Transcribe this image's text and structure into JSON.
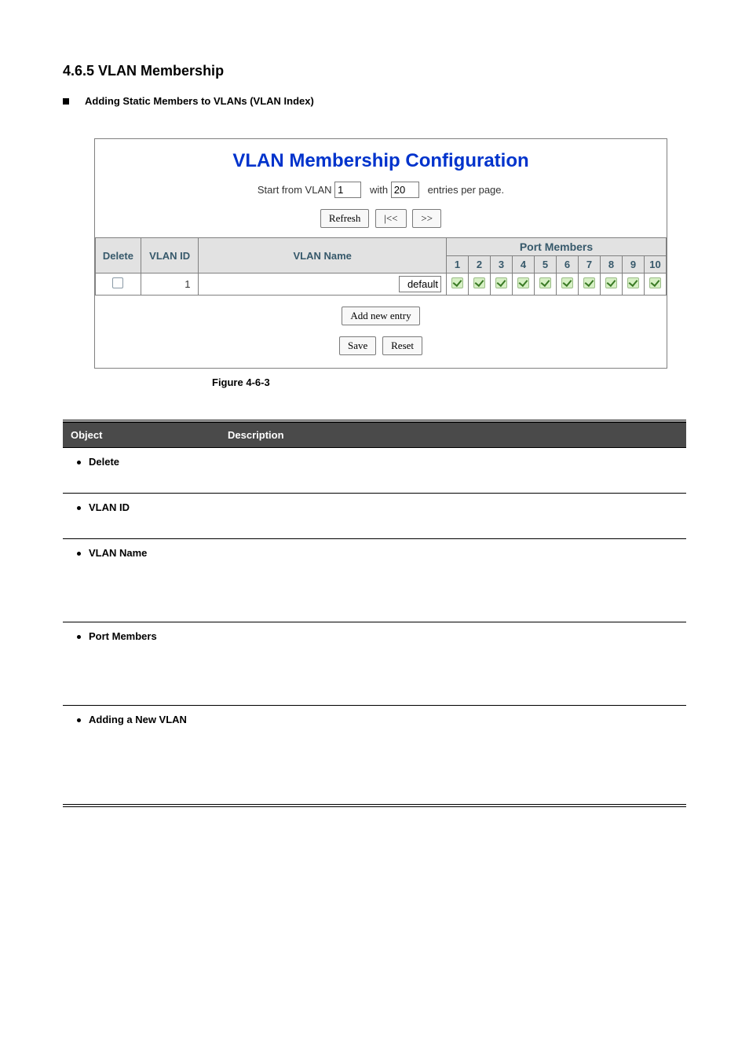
{
  "heading": "4.6.5 VLAN Membership",
  "sub_bullet": "Adding Static Members to VLANs (VLAN Index)",
  "panel": {
    "title": "VLAN Membership Configuration",
    "start_label_pre": "Start from VLAN",
    "start_value": "1",
    "with_label": "with",
    "with_value": "20",
    "entries_label": "entries per page.",
    "refresh_btn": "Refresh",
    "first_btn": "|<<",
    "next_btn": ">>",
    "headers": {
      "delete": "Delete",
      "vlan_id": "VLAN ID",
      "vlan_name": "VLAN Name",
      "port_members": "Port Members"
    },
    "port_numbers": [
      "1",
      "2",
      "3",
      "4",
      "5",
      "6",
      "7",
      "8",
      "9",
      "10"
    ],
    "row": {
      "vlan_id": "1",
      "vlan_name": "default",
      "ports_checked": [
        true,
        true,
        true,
        true,
        true,
        true,
        true,
        true,
        true,
        true
      ]
    },
    "add_btn": "Add new entry",
    "save_btn": "Save",
    "reset_btn": "Reset"
  },
  "figure_caption": "Figure 4-6-3",
  "desc_table": {
    "header_object": "Object",
    "header_description": "Description",
    "rows": [
      {
        "label": "Delete",
        "tall": ""
      },
      {
        "label": "VLAN ID",
        "tall": ""
      },
      {
        "label": "VLAN Name",
        "tall": "tall"
      },
      {
        "label": "Port Members",
        "tall": "tall"
      },
      {
        "label": "Adding a New VLAN",
        "tall": "taller"
      }
    ]
  }
}
